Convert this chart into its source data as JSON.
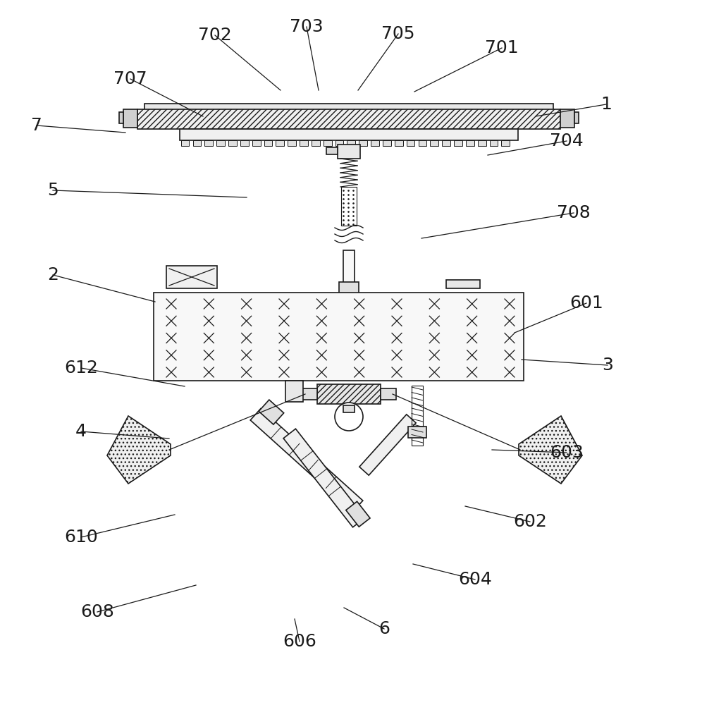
{
  "bg_color": "#ffffff",
  "line_color": "#1a1a1a",
  "figsize": [
    9.96,
    10.0
  ],
  "dpi": 100,
  "label_configs": [
    [
      "1",
      860,
      148,
      760,
      165
    ],
    [
      "2",
      75,
      390,
      220,
      428
    ],
    [
      "3",
      862,
      518,
      740,
      510
    ],
    [
      "4",
      115,
      612,
      240,
      622
    ],
    [
      "5",
      75,
      270,
      350,
      280
    ],
    [
      "6",
      545,
      892,
      488,
      862
    ],
    [
      "7",
      52,
      178,
      178,
      188
    ],
    [
      "601",
      832,
      430,
      730,
      472
    ],
    [
      "602",
      752,
      740,
      660,
      718
    ],
    [
      "603",
      804,
      642,
      698,
      638
    ],
    [
      "604",
      674,
      822,
      586,
      800
    ],
    [
      "606",
      425,
      910,
      418,
      878
    ],
    [
      "608",
      138,
      868,
      278,
      830
    ],
    [
      "610",
      115,
      762,
      248,
      730
    ],
    [
      "612",
      115,
      522,
      262,
      548
    ],
    [
      "701",
      712,
      68,
      588,
      130
    ],
    [
      "702",
      305,
      50,
      398,
      128
    ],
    [
      "703",
      435,
      38,
      452,
      128
    ],
    [
      "704",
      804,
      200,
      692,
      220
    ],
    [
      "705",
      565,
      48,
      508,
      128
    ],
    [
      "707",
      185,
      112,
      288,
      165
    ],
    [
      "708",
      814,
      302,
      598,
      338
    ]
  ]
}
